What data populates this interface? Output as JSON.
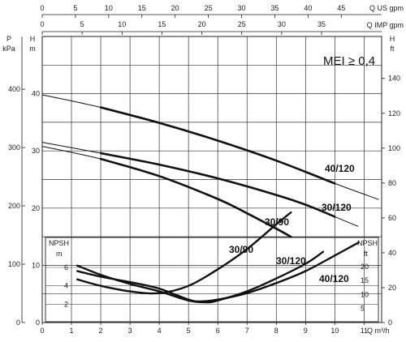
{
  "chart_data": {
    "type": "line",
    "title": "",
    "annotation": "MEI ≥ 0,4",
    "x_axis": {
      "label": "Q m³/h",
      "label_q": "Q",
      "label_unit": "m³/h",
      "ticks": [
        "0",
        "1",
        "2",
        "3",
        "4",
        "5",
        "6",
        "7",
        "8",
        "9",
        "10",
        "11"
      ],
      "range": [
        0,
        11.6
      ]
    },
    "top_axes": [
      {
        "label": "Q US gpm",
        "ticks": [
          "0",
          "5",
          "10",
          "15",
          "20",
          "25",
          "30",
          "35",
          "40",
          "45"
        ]
      },
      {
        "label": "Q IMP gpm",
        "ticks": [
          "0",
          "5",
          "10",
          "15",
          "20",
          "25",
          "30",
          "35"
        ]
      }
    ],
    "left_axes": {
      "p": {
        "label_top": "P",
        "label_unit": "kPa",
        "ticks": [
          "0",
          "100",
          "200",
          "300",
          "400"
        ]
      },
      "h": {
        "label_top": "H",
        "label_unit": "m",
        "ticks": [
          "0",
          "10",
          "20",
          "30",
          "40"
        ],
        "range": [
          0,
          50
        ]
      }
    },
    "right_axis": {
      "label_top": "H",
      "label_unit": "ft",
      "ticks": [
        "0",
        "20",
        "40",
        "60",
        "80",
        "100",
        "120",
        "140"
      ]
    },
    "npsh_axes": {
      "left": {
        "label": "NPSH",
        "unit": "m",
        "ticks": [
          "2",
          "4",
          "6"
        ]
      },
      "right": {
        "label": "NPSH",
        "unit": "ft",
        "ticks": [
          "5",
          "10",
          "15",
          "20"
        ]
      }
    },
    "series": [
      {
        "name": "40/120",
        "points": [
          [
            0,
            39.8
          ],
          [
            2,
            37.6
          ],
          [
            4,
            34.9
          ],
          [
            6,
            31.8
          ],
          [
            8,
            28.3
          ],
          [
            10,
            24.3
          ],
          [
            11.5,
            21.5
          ]
        ]
      },
      {
        "name": "30/120",
        "points": [
          [
            0,
            31.5
          ],
          [
            2,
            29.6
          ],
          [
            4,
            27.6
          ],
          [
            6,
            25.2
          ],
          [
            8,
            22.3
          ],
          [
            9,
            20.6
          ],
          [
            10,
            18.5
          ],
          [
            10.8,
            16.8
          ]
        ]
      },
      {
        "name": "30/90",
        "points": [
          [
            0,
            30.8
          ],
          [
            2,
            28.6
          ],
          [
            4,
            25.6
          ],
          [
            6,
            21.6
          ],
          [
            7,
            19.1
          ],
          [
            8,
            16.4
          ],
          [
            8.5,
            15.0
          ]
        ]
      }
    ],
    "npsh_series": [
      {
        "name": "30/90",
        "points": [
          [
            1.2,
            4.7
          ],
          [
            2,
            4.0
          ],
          [
            3,
            3.4
          ],
          [
            4,
            3.2
          ],
          [
            5,
            4.0
          ],
          [
            6,
            5.8
          ],
          [
            7,
            8.0
          ],
          [
            8,
            10.7
          ],
          [
            8.5,
            12.0
          ]
        ]
      },
      {
        "name": "30/120",
        "points": [
          [
            1.2,
            6.2
          ],
          [
            2,
            5.2
          ],
          [
            3,
            4.2
          ],
          [
            4,
            3.4
          ],
          [
            5,
            2.4
          ],
          [
            5.6,
            2.2
          ],
          [
            6,
            2.4
          ],
          [
            7,
            3.4
          ],
          [
            8,
            4.8
          ],
          [
            9,
            6.4
          ],
          [
            9.6,
            7.7
          ]
        ]
      },
      {
        "name": "40/120",
        "points": [
          [
            1.2,
            5.6
          ],
          [
            2,
            5.0
          ],
          [
            3,
            4.4
          ],
          [
            4,
            3.7
          ],
          [
            5,
            2.5
          ],
          [
            5.4,
            2.3
          ],
          [
            6,
            2.5
          ],
          [
            7,
            3.2
          ],
          [
            8,
            4.3
          ],
          [
            9,
            5.6
          ],
          [
            10,
            7.3
          ],
          [
            10.8,
            8.7
          ]
        ]
      }
    ],
    "curve_labels": [
      {
        "text": "40/120"
      },
      {
        "text": "30/120"
      },
      {
        "text": "30/90"
      },
      {
        "text": "30/90"
      },
      {
        "text": "30/120"
      },
      {
        "text": "40/120"
      }
    ],
    "grid": true
  }
}
